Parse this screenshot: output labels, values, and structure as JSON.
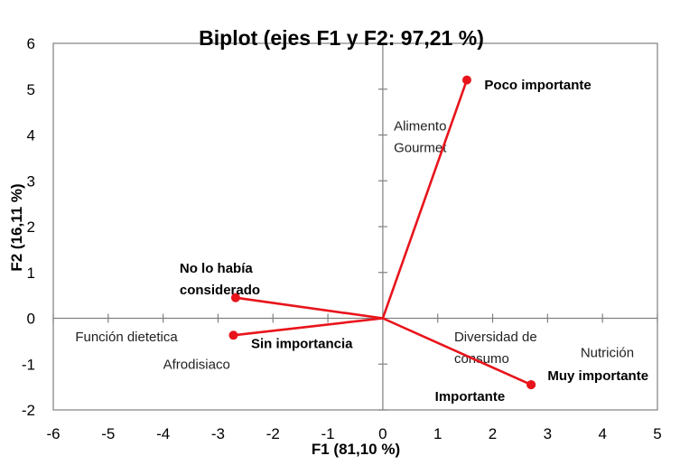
{
  "chart_data": {
    "type": "scatter",
    "title": "Biplot (ejes F1 y F2: 97,21 %)",
    "xlabel": "F1 (81,10 %)",
    "ylabel": "F2 (16,11 %)",
    "xlim": [
      -6,
      5
    ],
    "ylim": [
      -2,
      6
    ],
    "x_ticks": [
      "-6",
      "-5",
      "-4",
      "-3",
      "-2",
      "-1",
      "0",
      "1",
      "2",
      "3",
      "4",
      "5"
    ],
    "y_ticks": [
      "-2",
      "-1",
      "0",
      "1",
      "2",
      "3",
      "4",
      "5",
      "6"
    ],
    "grid": false,
    "variables": [
      {
        "label": [
          "Poco importante"
        ],
        "x": 1.53,
        "y": 5.2,
        "label_x": 1.85,
        "label_y": 5.0
      },
      {
        "label": [
          "No lo había",
          "considerado"
        ],
        "x": -2.68,
        "y": 0.45,
        "label_x": -3.7,
        "label_y": 1.0
      },
      {
        "label": [
          "Sin importancia"
        ],
        "x": -2.72,
        "y": -0.37,
        "label_x": -2.4,
        "label_y": -0.65
      },
      {
        "label": [
          "Muy importante"
        ],
        "x": 2.7,
        "y": -1.45,
        "label_x": 3.0,
        "label_y": -1.35
      },
      {
        "label": [
          "Importante"
        ],
        "x": 2.7,
        "y": -1.45,
        "label_x": 0.95,
        "label_y": -1.8
      }
    ],
    "observations": [
      {
        "label": [
          "Alimento",
          "Gourmet"
        ],
        "x": 0.2,
        "y": 4.1
      },
      {
        "label": [
          "Función dietetica"
        ],
        "x": -5.6,
        "y": -0.5
      },
      {
        "label": [
          "Afrodisiaco"
        ],
        "x": -4.0,
        "y": -1.1
      },
      {
        "label": [
          "Diversidad de",
          "consumo"
        ],
        "x": 1.3,
        "y": -0.5
      },
      {
        "label": [
          "Nutrición"
        ],
        "x": 3.6,
        "y": -0.85
      }
    ],
    "colors": {
      "vectors": "#e8141b",
      "axes": "#808080",
      "text": "#000000"
    }
  }
}
